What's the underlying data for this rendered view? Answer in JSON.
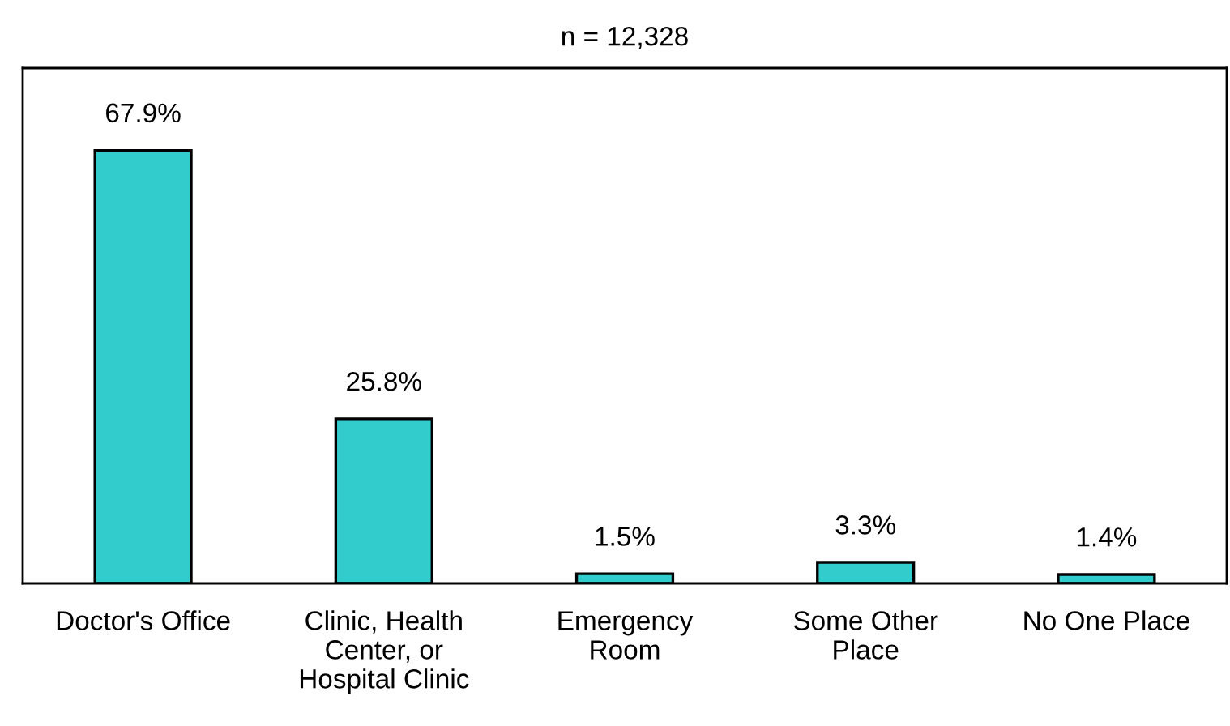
{
  "chart_data": {
    "type": "bar",
    "title": "n = 12,328",
    "categories": [
      "Doctor's Office",
      "Clinic, Health\nCenter, or\nHospital Clinic",
      "Emergency\nRoom",
      "Some Other\nPlace",
      "No One Place"
    ],
    "values": [
      67.9,
      25.8,
      1.5,
      3.3,
      1.4
    ],
    "value_labels": [
      "67.9%",
      "25.8%",
      "1.5%",
      "3.3%",
      "1.4%"
    ],
    "color": "#33cccc",
    "grid": false,
    "legend": false
  }
}
